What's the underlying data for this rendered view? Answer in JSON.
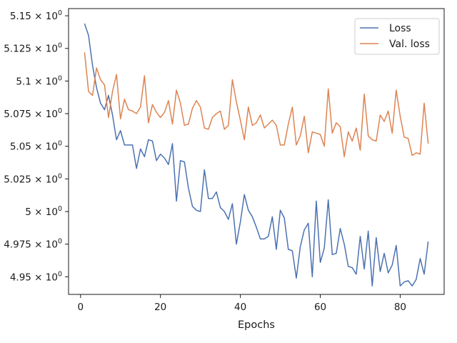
{
  "chart_data": {
    "type": "line",
    "xlabel": "Epochs",
    "ylabel": "",
    "xlim": [
      -3,
      91
    ],
    "ylim": [
      4.9365,
      5.1555
    ],
    "y_tick_format": "mathtext_times_10_0",
    "x_ticks": [
      0,
      20,
      40,
      60,
      80
    ],
    "y_ticks": [
      4.95,
      4.975,
      5.0,
      5.025,
      5.05,
      5.075,
      5.1,
      5.125,
      5.15
    ],
    "y_tick_labels": [
      "4.95",
      "4.975",
      "5",
      "5.025",
      "5.05",
      "5.075",
      "5.1",
      "5.125",
      "5.15"
    ],
    "y_tick_exponent": "0",
    "y_tick_base": "× 10",
    "grid": false,
    "legend_position": "top-right",
    "series": [
      {
        "name": "Loss",
        "color": "#4c72b0",
        "x": [
          1,
          2,
          3,
          4,
          5,
          6,
          7,
          8,
          9,
          10,
          11,
          12,
          13,
          14,
          15,
          16,
          17,
          18,
          19,
          20,
          21,
          22,
          23,
          24,
          25,
          26,
          27,
          28,
          29,
          30,
          31,
          32,
          33,
          34,
          35,
          36,
          37,
          38,
          39,
          40,
          41,
          42,
          43,
          44,
          45,
          46,
          47,
          48,
          49,
          50,
          51,
          52,
          53,
          54,
          55,
          56,
          57,
          58,
          59,
          60,
          61,
          62,
          63,
          64,
          65,
          66,
          67,
          68,
          69,
          70,
          71,
          72,
          73,
          74,
          75,
          76,
          77,
          78,
          79,
          80,
          81,
          82,
          83,
          84,
          85,
          86,
          87
        ],
        "values": [
          5.144,
          5.135,
          5.112,
          5.095,
          5.083,
          5.078,
          5.089,
          5.074,
          5.055,
          5.062,
          5.051,
          5.051,
          5.051,
          5.033,
          5.048,
          5.042,
          5.055,
          5.054,
          5.039,
          5.044,
          5.041,
          5.036,
          5.052,
          5.008,
          5.039,
          5.038,
          5.018,
          5.004,
          5.001,
          5.0,
          5.032,
          5.01,
          5.01,
          5.015,
          5.003,
          5.0,
          4.994,
          5.006,
          4.975,
          4.992,
          5.013,
          5.001,
          4.996,
          4.988,
          4.979,
          4.979,
          4.981,
          4.996,
          4.971,
          5.001,
          4.995,
          4.971,
          4.97,
          4.949,
          4.973,
          4.986,
          4.991,
          4.95,
          5.008,
          4.961,
          4.972,
          5.009,
          4.967,
          4.968,
          4.987,
          4.975,
          4.958,
          4.957,
          4.952,
          4.981,
          4.956,
          4.985,
          4.943,
          4.98,
          4.954,
          4.968,
          4.953,
          4.959,
          4.974,
          4.943,
          4.946,
          4.947,
          4.943,
          4.948,
          4.964,
          4.952,
          4.977
        ]
      },
      {
        "name": "Val. loss",
        "color": "#dd8452",
        "x": [
          1,
          2,
          3,
          4,
          5,
          6,
          7,
          8,
          9,
          10,
          11,
          12,
          13,
          14,
          15,
          16,
          17,
          18,
          19,
          20,
          21,
          22,
          23,
          24,
          25,
          26,
          27,
          28,
          29,
          30,
          31,
          32,
          33,
          34,
          35,
          36,
          37,
          38,
          39,
          40,
          41,
          42,
          43,
          44,
          45,
          46,
          47,
          48,
          49,
          50,
          51,
          52,
          53,
          54,
          55,
          56,
          57,
          58,
          59,
          60,
          61,
          62,
          63,
          64,
          65,
          66,
          67,
          68,
          69,
          70,
          71,
          72,
          73,
          74,
          75,
          76,
          77,
          78,
          79,
          80,
          81,
          82,
          83,
          84,
          85,
          86,
          87
        ],
        "values": [
          5.122,
          5.092,
          5.089,
          5.11,
          5.101,
          5.097,
          5.072,
          5.092,
          5.105,
          5.071,
          5.086,
          5.078,
          5.077,
          5.075,
          5.08,
          5.104,
          5.068,
          5.082,
          5.076,
          5.072,
          5.076,
          5.085,
          5.067,
          5.093,
          5.083,
          5.066,
          5.067,
          5.079,
          5.085,
          5.08,
          5.064,
          5.063,
          5.072,
          5.075,
          5.077,
          5.063,
          5.066,
          5.101,
          5.084,
          5.07,
          5.055,
          5.08,
          5.066,
          5.068,
          5.074,
          5.064,
          5.067,
          5.07,
          5.066,
          5.051,
          5.051,
          5.067,
          5.08,
          5.051,
          5.058,
          5.073,
          5.045,
          5.061,
          5.06,
          5.059,
          5.05,
          5.094,
          5.06,
          5.068,
          5.065,
          5.042,
          5.061,
          5.054,
          5.064,
          5.047,
          5.09,
          5.058,
          5.055,
          5.054,
          5.074,
          5.069,
          5.077,
          5.06,
          5.093,
          5.073,
          5.057,
          5.056,
          5.043,
          5.045,
          5.044,
          5.083,
          5.052
        ]
      }
    ]
  }
}
